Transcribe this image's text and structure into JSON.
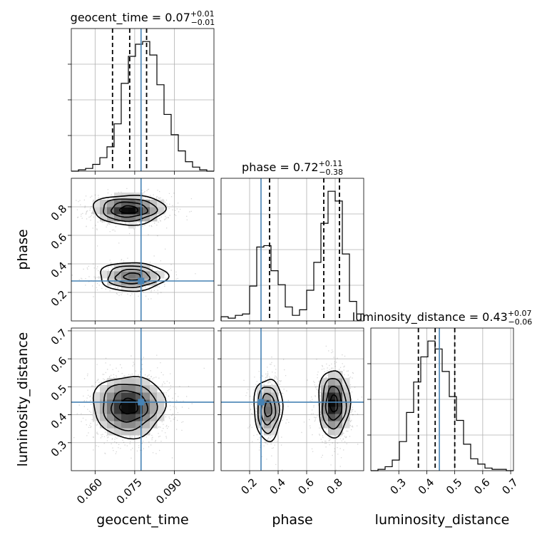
{
  "chart_data": {
    "type": "corner",
    "parameters": [
      {
        "name": "geocent_time",
        "range": [
          0.051,
          0.105
        ],
        "ticks": [
          0.06,
          0.075,
          0.09
        ],
        "tick_labels": [
          "0.060",
          "0.075",
          "0.090"
        ]
      },
      {
        "name": "phase",
        "range": [
          0.0,
          1.0
        ],
        "ticks": [
          0.2,
          0.4,
          0.6,
          0.8
        ],
        "tick_labels": [
          "0.2",
          "0.4",
          "0.6",
          "0.8"
        ]
      },
      {
        "name": "luminosity_distance",
        "range": [
          0.2,
          0.71
        ],
        "ticks": [
          0.3,
          0.4,
          0.5,
          0.6,
          0.7
        ],
        "tick_labels": [
          "0.3",
          "0.4",
          "0.5",
          "0.6",
          "0.7"
        ]
      }
    ],
    "truths": [
      0.0774,
      0.28,
      0.445
    ],
    "truth_color": "#4682b4",
    "titles": [
      {
        "label": "geocent_time = 0.07",
        "plus": "+0.01",
        "minus": "−0.01"
      },
      {
        "label": "phase = 0.72",
        "plus": "+0.11",
        "minus": "−0.38"
      },
      {
        "label": "luminosity_distance = 0.43",
        "plus": "+0.07",
        "minus": "−0.06"
      }
    ],
    "quantiles": [
      [
        0.0666,
        0.0731,
        0.0795
      ],
      [
        0.34,
        0.72,
        0.83
      ],
      [
        0.37,
        0.43,
        0.5
      ]
    ],
    "histograms": [
      {
        "edges_range": [
          0.051,
          0.105
        ],
        "counts": [
          0,
          1,
          2,
          5,
          10,
          18,
          35,
          65,
          85,
          94,
          96,
          86,
          64,
          42,
          27,
          15,
          7,
          3,
          1,
          0
        ]
      },
      {
        "edges_range": [
          0.0,
          1.0
        ],
        "counts": [
          3,
          2,
          4,
          5,
          25,
          53,
          54,
          36,
          26,
          10,
          4,
          8,
          22,
          42,
          70,
          93,
          86,
          48,
          14,
          5
        ]
      },
      {
        "edges_range": [
          0.2,
          0.71
        ],
        "counts": [
          0,
          1,
          3,
          8,
          22,
          44,
          67,
          86,
          98,
          92,
          75,
          56,
          38,
          20,
          9,
          5,
          2,
          1,
          1,
          0
        ]
      }
    ],
    "grid": true,
    "pairs": [
      {
        "x": 0,
        "y": 1,
        "modes": [
          {
            "mean": [
              0.0728,
              0.78
            ],
            "sd": [
              0.0068,
              0.052
            ],
            "weight": 0.62
          },
          {
            "mean": [
              0.0742,
              0.31
            ],
            "sd": [
              0.0064,
              0.05
            ],
            "weight": 0.38
          }
        ]
      },
      {
        "x": 0,
        "y": 2,
        "modes": [
          {
            "mean": [
              0.0728,
              0.43
            ],
            "sd": [
              0.0068,
              0.055
            ],
            "weight": 1.0
          }
        ]
      },
      {
        "x": 1,
        "y": 2,
        "modes": [
          {
            "mean": [
              0.33,
              0.42
            ],
            "sd": [
              0.05,
              0.055
            ],
            "weight": 0.38
          },
          {
            "mean": [
              0.79,
              0.44
            ],
            "sd": [
              0.055,
              0.06
            ],
            "weight": 0.62
          }
        ]
      }
    ]
  }
}
